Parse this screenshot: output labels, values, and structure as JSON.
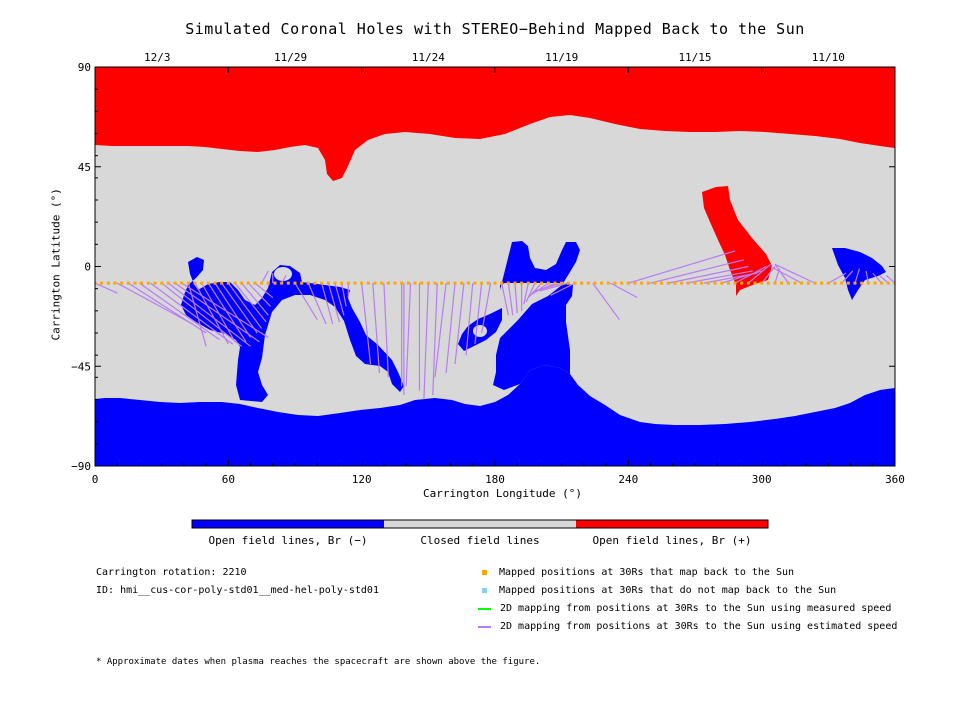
{
  "chart_data": {
    "type": "map",
    "title": "Simulated Coronal Holes with STEREO−Behind Mapped Back to the Sun",
    "xlabel": "Carrington Longitude (°)",
    "ylabel": "Carrington Latitude (°)",
    "xlim": [
      0,
      360
    ],
    "ylim": [
      -90,
      90
    ],
    "x_ticks": [
      "0",
      "60",
      "120",
      "180",
      "240",
      "300",
      "360"
    ],
    "y_ticks": [
      "90",
      "45",
      "0",
      "−45",
      "−90"
    ],
    "top_date_ticks": [
      {
        "label": "12/3",
        "lon": 28
      },
      {
        "label": "11/29",
        "lon": 88
      },
      {
        "label": "11/24",
        "lon": 150
      },
      {
        "label": "11/19",
        "lon": 210
      },
      {
        "label": "11/15",
        "lon": 270
      },
      {
        "label": "11/10",
        "lon": 330
      }
    ],
    "colors": {
      "open_negative": "#0000ff",
      "closed": "#d8d8d8",
      "open_positive": "#ff0000",
      "mapped": "#ffa500",
      "not_mapped": "#87cefa",
      "measured": "#00ff00",
      "estimated": "#b87cf5"
    },
    "colorbar_labels": [
      "Open field lines, Br (−)",
      "Closed field lines",
      "Open field lines, Br (+)"
    ],
    "spacecraft_latitude": -7.5,
    "mapped_positions_lon_step": 3,
    "estimated_speed_mappings": [
      {
        "from": [
          0,
          -7.5
        ],
        "to": [
          10,
          -12
        ]
      },
      {
        "from": [
          10,
          -7.5
        ],
        "to": [
          44,
          -26
        ]
      },
      {
        "from": [
          15,
          -7.5
        ],
        "to": [
          50,
          -30
        ]
      },
      {
        "from": [
          20,
          -7.5
        ],
        "to": [
          56,
          -33
        ]
      },
      {
        "from": [
          25,
          -7.5
        ],
        "to": [
          62,
          -35
        ]
      },
      {
        "from": [
          30,
          -7.5
        ],
        "to": [
          66,
          -36
        ]
      },
      {
        "from": [
          33,
          -7.5
        ],
        "to": [
          70,
          -36
        ]
      },
      {
        "from": [
          36,
          -7.5
        ],
        "to": [
          74,
          -34
        ]
      },
      {
        "from": [
          39,
          -7.5
        ],
        "to": [
          78,
          -32
        ]
      },
      {
        "from": [
          42,
          -7.5
        ],
        "to": [
          50,
          -36
        ]
      },
      {
        "from": [
          45,
          -7.5
        ],
        "to": [
          60,
          -35
        ]
      },
      {
        "from": [
          48,
          -7.5
        ],
        "to": [
          63,
          -34
        ]
      },
      {
        "from": [
          51,
          -7.5
        ],
        "to": [
          68,
          -34
        ]
      },
      {
        "from": [
          54,
          -7.5
        ],
        "to": [
          70,
          -32
        ]
      },
      {
        "from": [
          57,
          -7.5
        ],
        "to": [
          73,
          -30
        ]
      },
      {
        "from": [
          60,
          -7.5
        ],
        "to": [
          75,
          -28
        ]
      },
      {
        "from": [
          63,
          -7.5
        ],
        "to": [
          77,
          -25
        ]
      },
      {
        "from": [
          66,
          -7.5
        ],
        "to": [
          78,
          -22
        ]
      },
      {
        "from": [
          69,
          -7.5
        ],
        "to": [
          79,
          -18
        ]
      },
      {
        "from": [
          72,
          -7.5
        ],
        "to": [
          80,
          -14
        ]
      },
      {
        "from": [
          75,
          -7.5
        ],
        "to": [
          78,
          -2
        ]
      },
      {
        "from": [
          80,
          -7.5
        ],
        "to": [
          80,
          -3
        ]
      },
      {
        "from": [
          84,
          -7.5
        ],
        "to": [
          86,
          -4
        ]
      },
      {
        "from": [
          90,
          -7.5
        ],
        "to": [
          100,
          -24
        ]
      },
      {
        "from": [
          96,
          -7.5
        ],
        "to": [
          104,
          -26
        ]
      },
      {
        "from": [
          102,
          -7.5
        ],
        "to": [
          107,
          -26
        ]
      },
      {
        "from": [
          105,
          -7.5
        ],
        "to": [
          110,
          -25
        ]
      },
      {
        "from": [
          108,
          -7.5
        ],
        "to": [
          112,
          -22
        ]
      },
      {
        "from": [
          111,
          -7.5
        ],
        "to": [
          113,
          -18
        ]
      },
      {
        "from": [
          114,
          -7.5
        ],
        "to": [
          114,
          -14
        ]
      },
      {
        "from": [
          120,
          -7.5
        ],
        "to": [
          124,
          -44
        ]
      },
      {
        "from": [
          125,
          -7.5
        ],
        "to": [
          128,
          -48
        ]
      },
      {
        "from": [
          130,
          -7.5
        ],
        "to": [
          132,
          -50
        ]
      },
      {
        "from": [
          138,
          -7.5
        ],
        "to": [
          138,
          -54
        ]
      },
      {
        "from": [
          139,
          -7.5
        ],
        "to": [
          139,
          -58
        ]
      },
      {
        "from": [
          142,
          -7.5
        ],
        "to": [
          140,
          -54
        ]
      },
      {
        "from": [
          146,
          -7.5
        ],
        "to": [
          146,
          -56
        ]
      },
      {
        "from": [
          150,
          -7.5
        ],
        "to": [
          148,
          -60
        ]
      },
      {
        "from": [
          154,
          -7.5
        ],
        "to": [
          152,
          -58
        ]
      },
      {
        "from": [
          158,
          -7.5
        ],
        "to": [
          153,
          -50
        ]
      },
      {
        "from": [
          162,
          -7.5
        ],
        "to": [
          158,
          -48
        ]
      },
      {
        "from": [
          166,
          -7.5
        ],
        "to": [
          162,
          -44
        ]
      },
      {
        "from": [
          170,
          -7.5
        ],
        "to": [
          167,
          -40
        ]
      },
      {
        "from": [
          174,
          -7.5
        ],
        "to": [
          171,
          -35
        ]
      },
      {
        "from": [
          178,
          -7.5
        ],
        "to": [
          174,
          -30
        ]
      },
      {
        "from": [
          183,
          -7.5
        ],
        "to": [
          186,
          -22
        ]
      },
      {
        "from": [
          186,
          -7.5
        ],
        "to": [
          188,
          -22
        ]
      },
      {
        "from": [
          189,
          -7.5
        ],
        "to": [
          190,
          -21
        ]
      },
      {
        "from": [
          192,
          -7.5
        ],
        "to": [
          192,
          -20
        ]
      },
      {
        "from": [
          195,
          -7.5
        ],
        "to": [
          193,
          -17
        ]
      },
      {
        "from": [
          198,
          -7.5
        ],
        "to": [
          194,
          -16
        ]
      },
      {
        "from": [
          201,
          -7.5
        ],
        "to": [
          195,
          -14
        ]
      },
      {
        "from": [
          204,
          -7.5
        ],
        "to": [
          196,
          -13
        ]
      },
      {
        "from": [
          207,
          -7.5
        ],
        "to": [
          197,
          -12
        ]
      },
      {
        "from": [
          210,
          -7.5
        ],
        "to": [
          198,
          -11
        ]
      },
      {
        "from": [
          213,
          -7.5
        ],
        "to": [
          200,
          -11
        ]
      },
      {
        "from": [
          216,
          -7.5
        ],
        "to": [
          205,
          -13
        ]
      },
      {
        "from": [
          224,
          -7.5
        ],
        "to": [
          236,
          -24
        ]
      },
      {
        "from": [
          232,
          -7.5
        ],
        "to": [
          244,
          -14
        ]
      },
      {
        "from": [
          240,
          -7.5
        ],
        "to": [
          288,
          7
        ]
      },
      {
        "from": [
          250,
          -7.5
        ],
        "to": [
          292,
          3
        ]
      },
      {
        "from": [
          258,
          -7.5
        ],
        "to": [
          294,
          0
        ]
      },
      {
        "from": [
          266,
          -7.5
        ],
        "to": [
          296,
          -2
        ]
      },
      {
        "from": [
          274,
          -7.5
        ],
        "to": [
          298,
          -3
        ]
      },
      {
        "from": [
          282,
          -7.5
        ],
        "to": [
          300,
          -2
        ]
      },
      {
        "from": [
          288,
          -7.5
        ],
        "to": [
          302,
          0
        ]
      },
      {
        "from": [
          294,
          -7.5
        ],
        "to": [
          304,
          1
        ]
      },
      {
        "from": [
          300,
          -7.5
        ],
        "to": [
          306,
          0
        ]
      },
      {
        "from": [
          306,
          -7.5
        ],
        "to": [
          308,
          -1
        ]
      },
      {
        "from": [
          312,
          -7.5
        ],
        "to": [
          306,
          1
        ]
      },
      {
        "from": [
          318,
          -7.5
        ],
        "to": [
          304,
          0
        ]
      },
      {
        "from": [
          324,
          -7.5
        ],
        "to": [
          306,
          1
        ]
      },
      {
        "from": [
          330,
          -7.5
        ],
        "to": [
          338,
          -3
        ]
      },
      {
        "from": [
          336,
          -7.5
        ],
        "to": [
          341,
          -2
        ]
      },
      {
        "from": [
          342,
          -7.5
        ],
        "to": [
          344,
          -1
        ]
      },
      {
        "from": [
          348,
          -7.5
        ],
        "to": [
          347,
          -2
        ]
      },
      {
        "from": [
          354,
          -7.5
        ],
        "to": [
          350,
          -3
        ]
      },
      {
        "from": [
          357,
          -7.5
        ],
        "to": [
          353,
          -4
        ]
      },
      {
        "from": [
          360,
          -7.5
        ],
        "to": [
          356,
          -4
        ]
      }
    ]
  },
  "info": {
    "rotation_label": "Carrington rotation:",
    "rotation_value": "2210",
    "id_label": "ID:",
    "id_value": "hmi__cus-cor-poly-std01__med-hel-poly-std01"
  },
  "legend": [
    {
      "label": "Mapped positions at 30Rs that map back to the Sun",
      "color": "#ffa500",
      "kind": "square"
    },
    {
      "label": "Mapped positions at 30Rs that do not map back to the Sun",
      "color": "#87cefa",
      "kind": "square"
    },
    {
      "label": "2D mapping from positions at 30Rs to the Sun using measured speed",
      "color": "#00ff00",
      "kind": "line"
    },
    {
      "label": "2D mapping from positions at 30Rs to the Sun using estimated speed",
      "color": "#b87cf5",
      "kind": "line"
    }
  ],
  "footnote": "* Approximate dates when plasma reaches the spacecraft are shown above the figure."
}
